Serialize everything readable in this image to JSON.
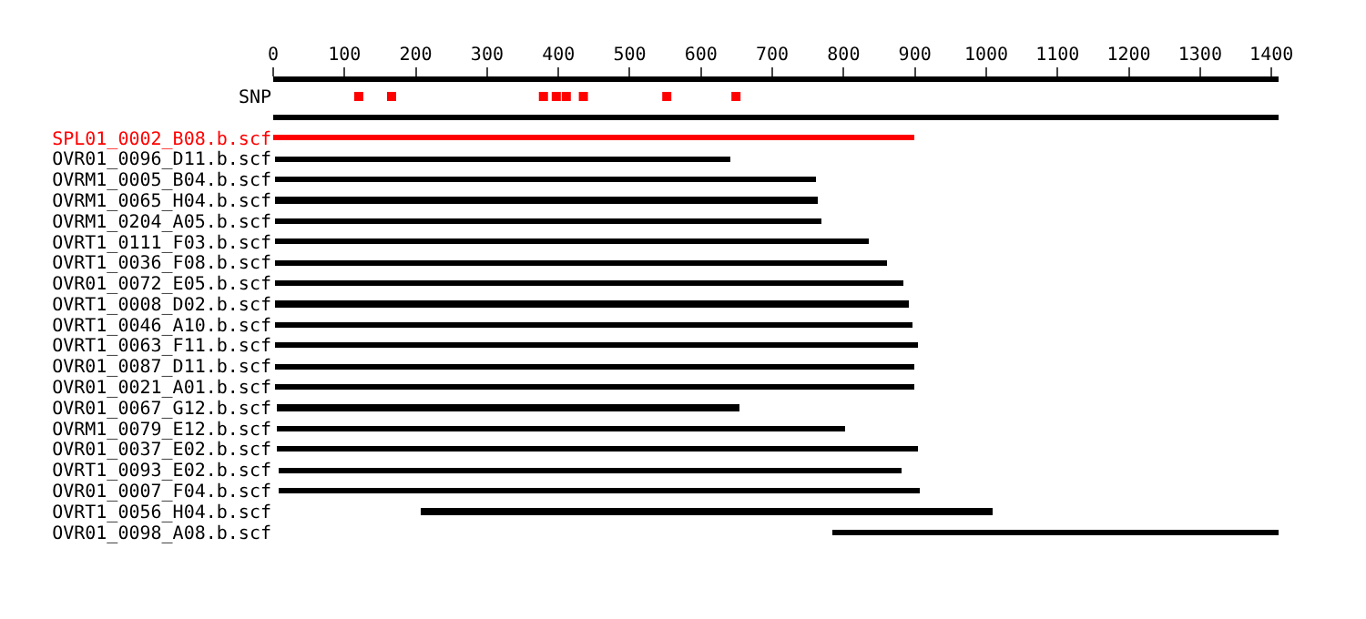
{
  "chart_data": {
    "type": "bar",
    "orientation": "horizontal",
    "xlim": [
      0,
      1410
    ],
    "xticks": [
      0,
      100,
      200,
      300,
      400,
      500,
      600,
      700,
      800,
      900,
      1000,
      1100,
      1200,
      1300,
      1400
    ],
    "categories": [
      "SNP",
      null,
      "SPL01_0002_B08.b.scf",
      "OVR01_0096_D11.b.scf",
      "OVRM1_0005_B04.b.scf",
      "OVRM1_0065_H04.b.scf",
      "OVRM1_0204_A05.b.scf",
      "OVRT1_0111_F03.b.scf",
      "OVRT1_0036_F08.b.scf",
      "OVR01_0072_E05.b.scf",
      "OVRT1_0008_D02.b.scf",
      "OVRT1_0046_A10.b.scf",
      "OVRT1_0063_F11.b.scf",
      "OVR01_0087_D11.b.scf",
      "OVR01_0021_A01.b.scf",
      "OVR01_0067_G12.b.scf",
      "OVRM1_0079_E12.b.scf",
      "OVR01_0037_E02.b.scf",
      "OVRT1_0093_E02.b.scf",
      "OVR01_0007_F04.b.scf",
      "OVRT1_0056_H04.b.scf",
      "OVR01_0098_A08.b.scf"
    ],
    "series": [
      {
        "type": "scatter",
        "marker": "square",
        "color": "#ff0000",
        "x": [
          "SNP",
          "SNP",
          "SNP",
          "SNP",
          "SNP",
          "SNP",
          "SNP",
          "SNP"
        ],
        "values": [
          120,
          166,
          379,
          397,
          411,
          435,
          552,
          649
        ]
      },
      {
        "colors": [
          "#000000",
          "#000000",
          "#ff0000",
          "#000000",
          "#000000",
          "#000000",
          "#000000",
          "#000000",
          "#000000",
          "#000000",
          "#000000",
          "#000000",
          "#000000",
          "#000000",
          "#000000",
          "#000000",
          "#000000",
          "#000000",
          "#000000",
          "#000000",
          "#000000",
          "#000000"
        ],
        "base": [
          null,
          0,
          0,
          3,
          3,
          3,
          3,
          3,
          3,
          3,
          3,
          3,
          3,
          3,
          3,
          5,
          5,
          5,
          8,
          8,
          207,
          784
        ],
        "values": [
          null,
          1410,
          900,
          637,
          758,
          760,
          766,
          832,
          857,
          880,
          888,
          893,
          902,
          897,
          897,
          649,
          796,
          898,
          872,
          900,
          801,
          626
        ]
      }
    ]
  }
}
